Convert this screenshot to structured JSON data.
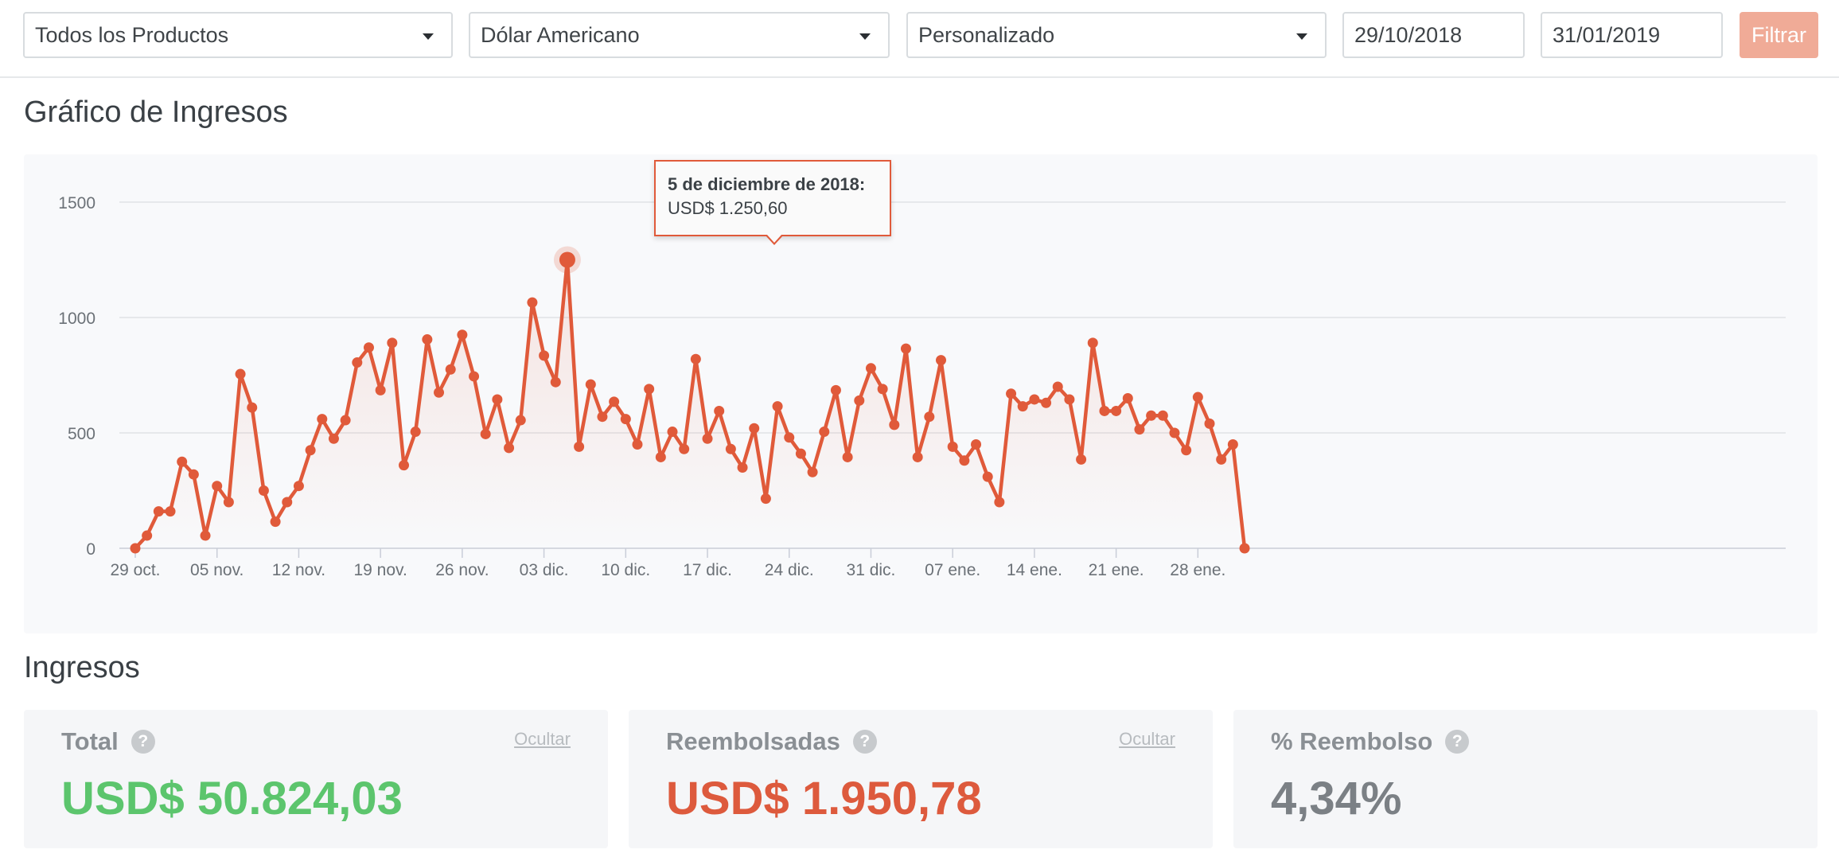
{
  "filters": {
    "product_select": "Todos los Productos",
    "currency_select": "Dólar Americano",
    "range_select": "Personalizado",
    "date_from": "29/10/2018",
    "date_to": "31/01/2019",
    "filter_button": "Filtrar",
    "filter_button_color": "#f0ab97"
  },
  "chart_section": {
    "title": "Gráfico de Ingresos"
  },
  "tooltip": {
    "date": "5 de diciembre de 2018:",
    "value": "USD$ 1.250,60",
    "point_index": 37
  },
  "chart_data": {
    "type": "area",
    "line_color": "#e05a3a",
    "grid": true,
    "ylim": [
      0,
      1500
    ],
    "yticks": [
      "0",
      "500",
      "1000",
      "1500"
    ],
    "xtick_labels": [
      "29 oct.",
      "05 nov.",
      "12 nov.",
      "19 nov.",
      "26 nov.",
      "03 dic.",
      "10 dic.",
      "17 dic.",
      "24 dic.",
      "31 dic.",
      "07 ene.",
      "14 ene.",
      "21 ene.",
      "28 ene."
    ],
    "x_start": "2018-10-29",
    "x_end": "2019-01-31",
    "series": [
      {
        "values": [
          0,
          55,
          160,
          160,
          375,
          320,
          55,
          270,
          200,
          755,
          610,
          250,
          115,
          200,
          270,
          425,
          560,
          475,
          555,
          805,
          870,
          685,
          890,
          360,
          505,
          905,
          675,
          775,
          925,
          745,
          495,
          645,
          435,
          555,
          1065,
          835,
          720,
          1250,
          440,
          710,
          570,
          635,
          560,
          450,
          690,
          395,
          505,
          430,
          820,
          475,
          595,
          430,
          350,
          520,
          215,
          615,
          480,
          410,
          330,
          505,
          685,
          395,
          640,
          780,
          690,
          535,
          865,
          395,
          570,
          815,
          440,
          380,
          450,
          310,
          200,
          670,
          615,
          645,
          630,
          700,
          645,
          385,
          890,
          595,
          595,
          650,
          515,
          575,
          575,
          500,
          425,
          655,
          540,
          385,
          450,
          0
        ]
      }
    ]
  },
  "revenue_section": {
    "title": "Ingresos"
  },
  "cards": {
    "total": {
      "label": "Total",
      "hide": "Ocultar",
      "value": "USD$ 50.824,03",
      "color": "#5cc56d"
    },
    "refunded": {
      "label": "Reembolsadas",
      "hide": "Ocultar",
      "value": "USD$ 1.950,78",
      "color": "#dd5a3d"
    },
    "refund_pct": {
      "label": "% Reembolso",
      "value": "4,34%",
      "color": "#7b8085"
    }
  },
  "icons": {
    "help": "question-circle-icon",
    "dropdown": "caret-down-icon"
  }
}
